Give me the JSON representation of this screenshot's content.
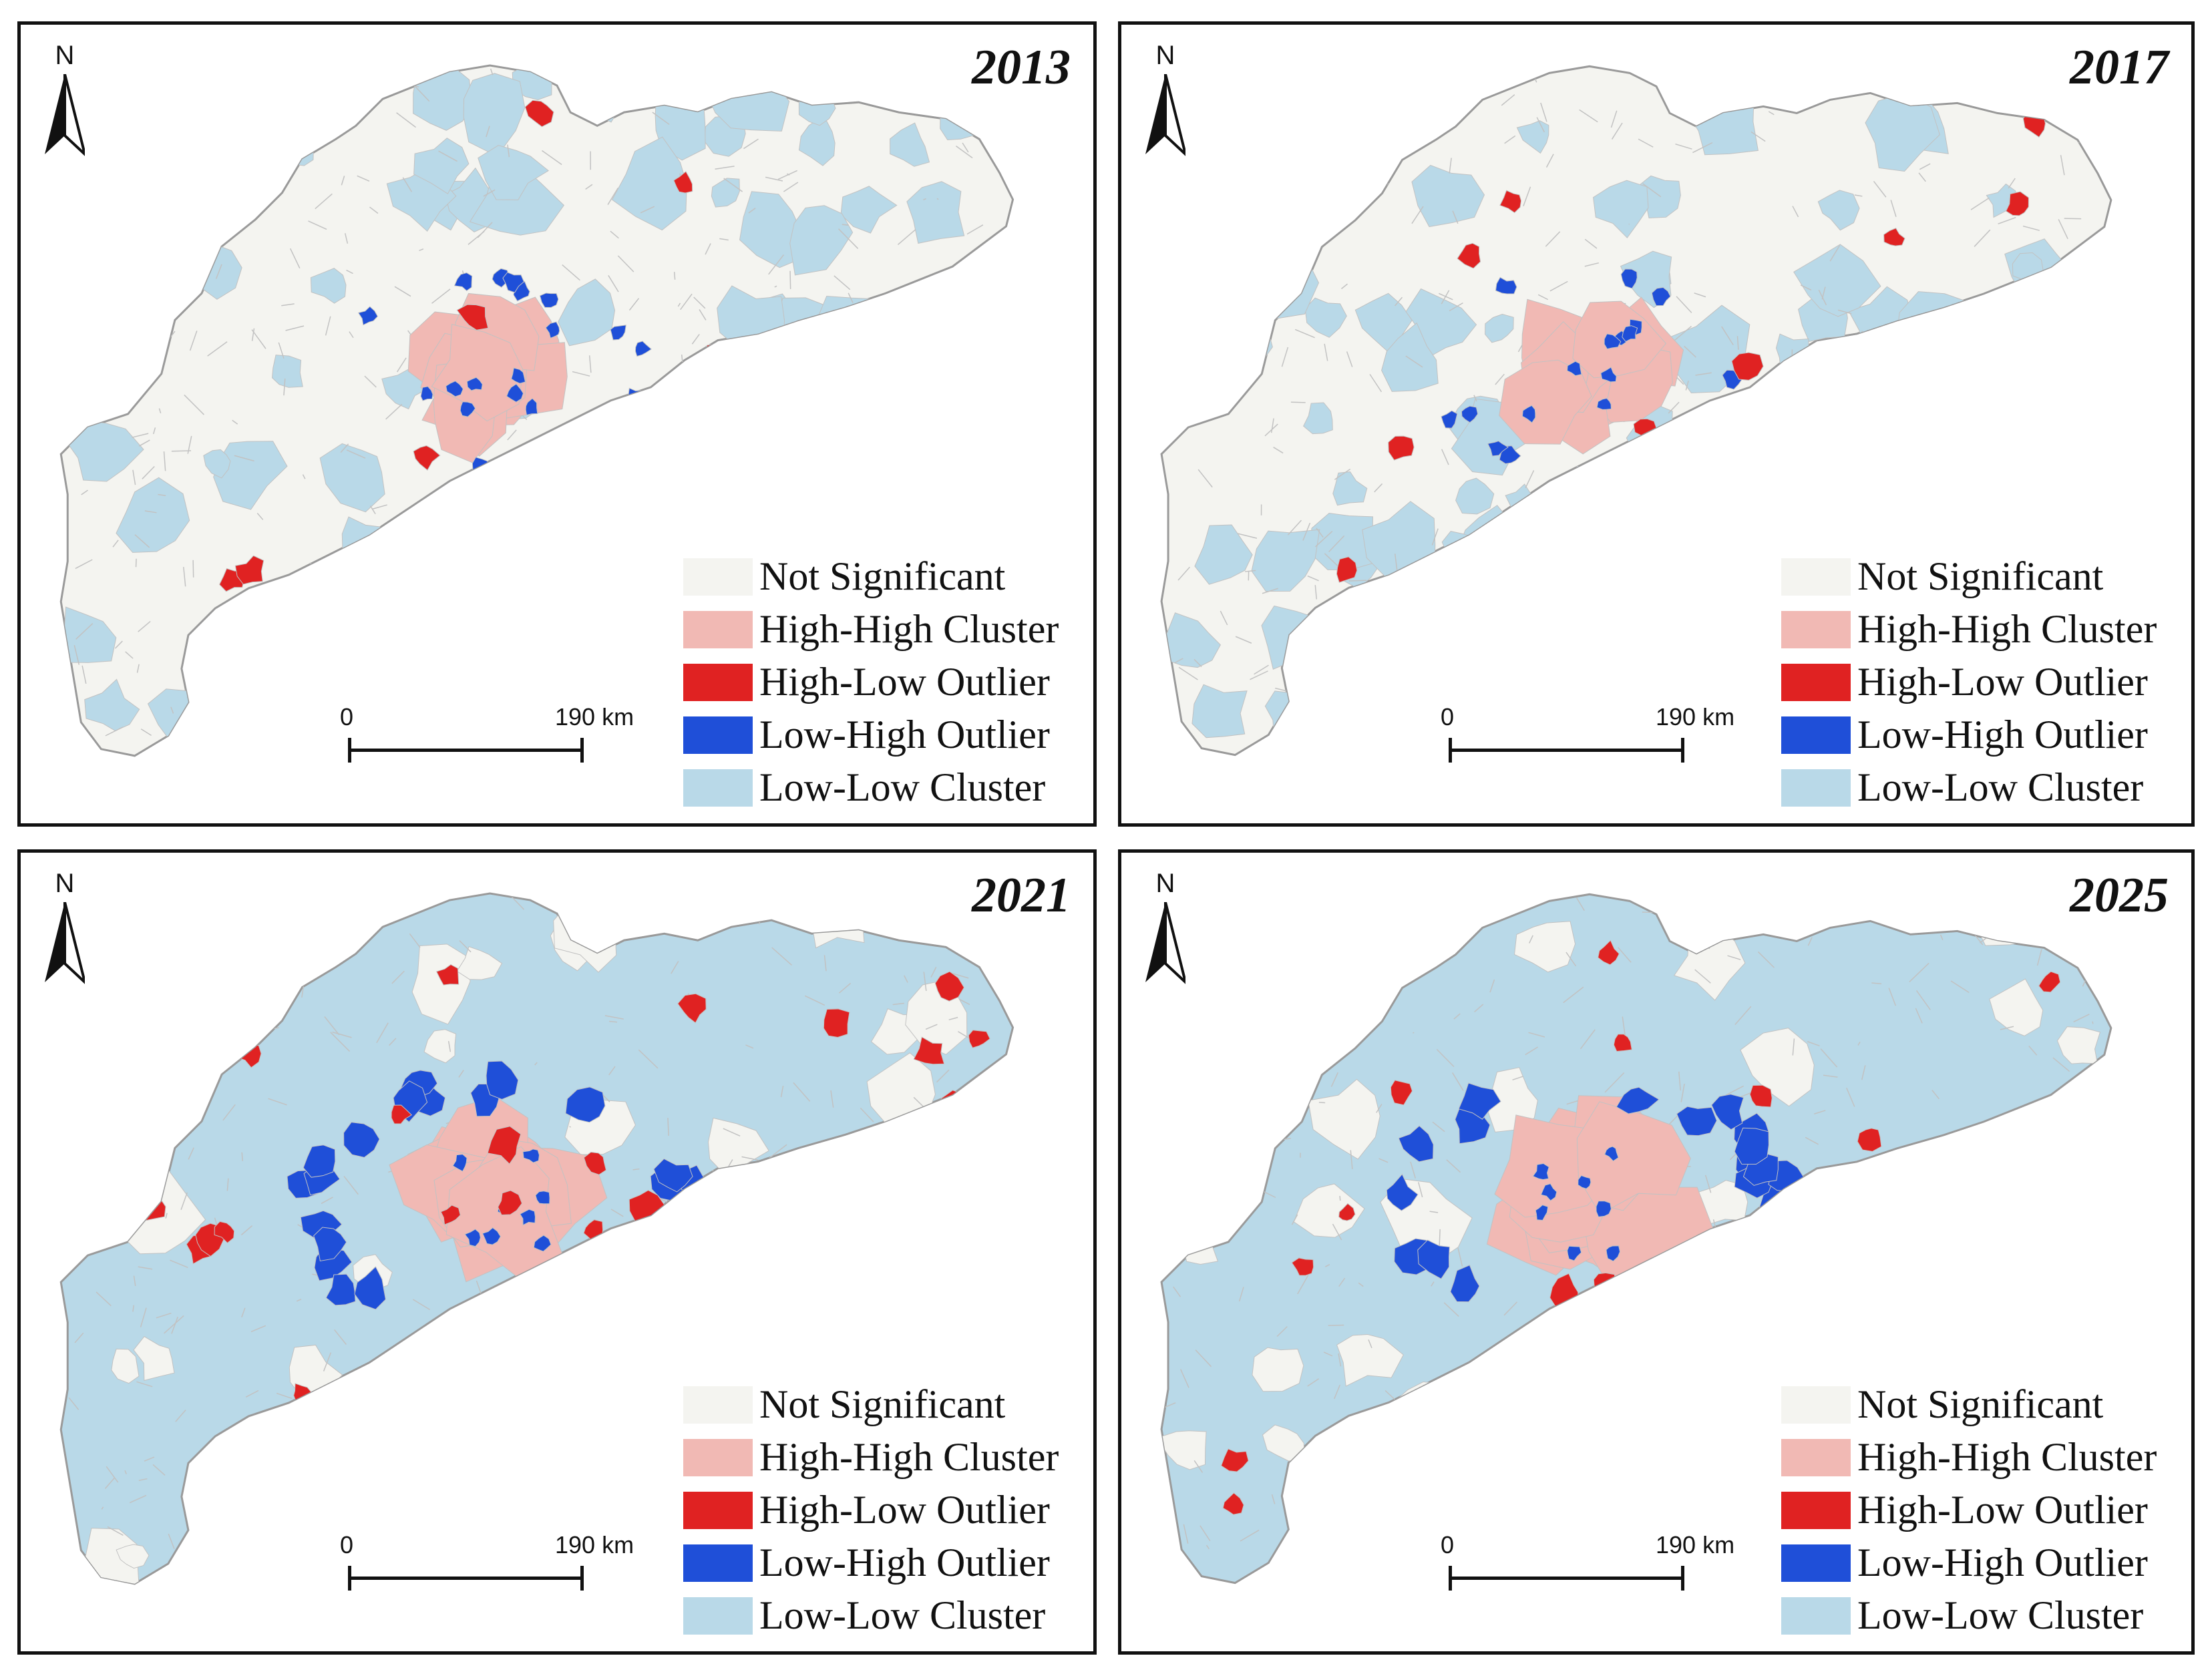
{
  "colors": {
    "not_significant": "#f4f4f0",
    "high_high": "#f1b9b4",
    "high_low": "#e02222",
    "low_high": "#1f4fd8",
    "low_low": "#b9d9e8",
    "boundary": "#c2c2c2",
    "frame": "#111111"
  },
  "north_label": "N",
  "scale": {
    "start": "0",
    "end": "190 km"
  },
  "legend": [
    {
      "key": "not_significant",
      "label": "Not Significant"
    },
    {
      "key": "high_high",
      "label": "High-High Cluster"
    },
    {
      "key": "high_low",
      "label": "High-Low Outlier"
    },
    {
      "key": "low_high",
      "label": "Low-High Outlier"
    },
    {
      "key": "low_low",
      "label": "Low-Low Cluster"
    }
  ],
  "panels": [
    {
      "year": "2013",
      "low_low_coverage": "partial",
      "icon": "lisa-cluster-map"
    },
    {
      "year": "2017",
      "low_low_coverage": "partial",
      "icon": "lisa-cluster-map"
    },
    {
      "year": "2021",
      "low_low_coverage": "extensive",
      "icon": "lisa-cluster-map"
    },
    {
      "year": "2025",
      "low_low_coverage": "extensive",
      "icon": "lisa-cluster-map"
    }
  ]
}
